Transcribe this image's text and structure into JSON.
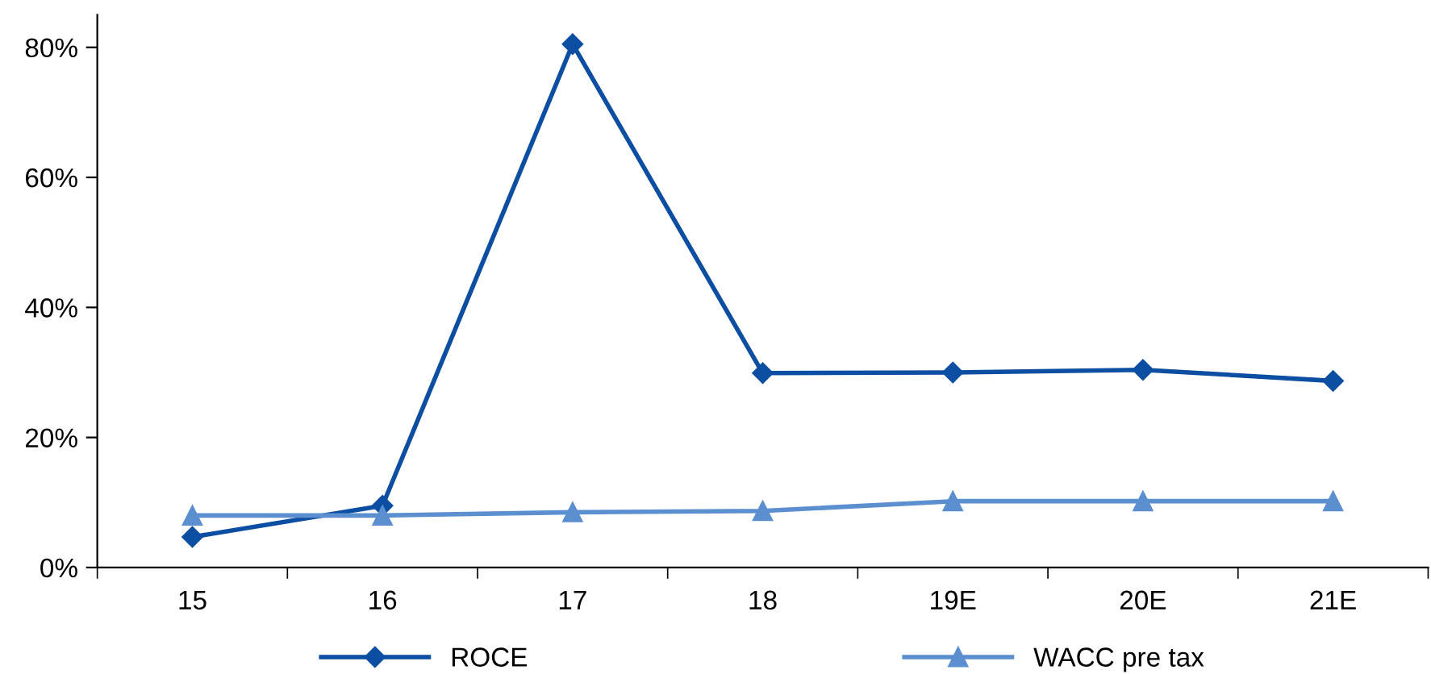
{
  "chart_data": {
    "type": "line",
    "categories": [
      "15",
      "16",
      "17",
      "18",
      "19E",
      "20E",
      "21E"
    ],
    "series": [
      {
        "name": "ROCE",
        "color": "#0b4ea2",
        "marker": "diamond",
        "values": [
          4.7,
          9.5,
          80.5,
          29.9,
          30.0,
          30.4,
          28.7
        ]
      },
      {
        "name": "WACC pre tax",
        "color": "#5b8fd0",
        "marker": "triangle",
        "values": [
          8.0,
          8.0,
          8.5,
          8.7,
          10.2,
          10.2,
          10.2
        ]
      }
    ],
    "ylim": [
      0,
      85
    ],
    "yticks": [
      {
        "value": 0,
        "label": "0%"
      },
      {
        "value": 20,
        "label": "20%"
      },
      {
        "value": 40,
        "label": "40%"
      },
      {
        "value": 60,
        "label": "60%"
      },
      {
        "value": 80,
        "label": "80%"
      }
    ],
    "grid": false,
    "legend": "bottom",
    "line_style": "solid"
  }
}
